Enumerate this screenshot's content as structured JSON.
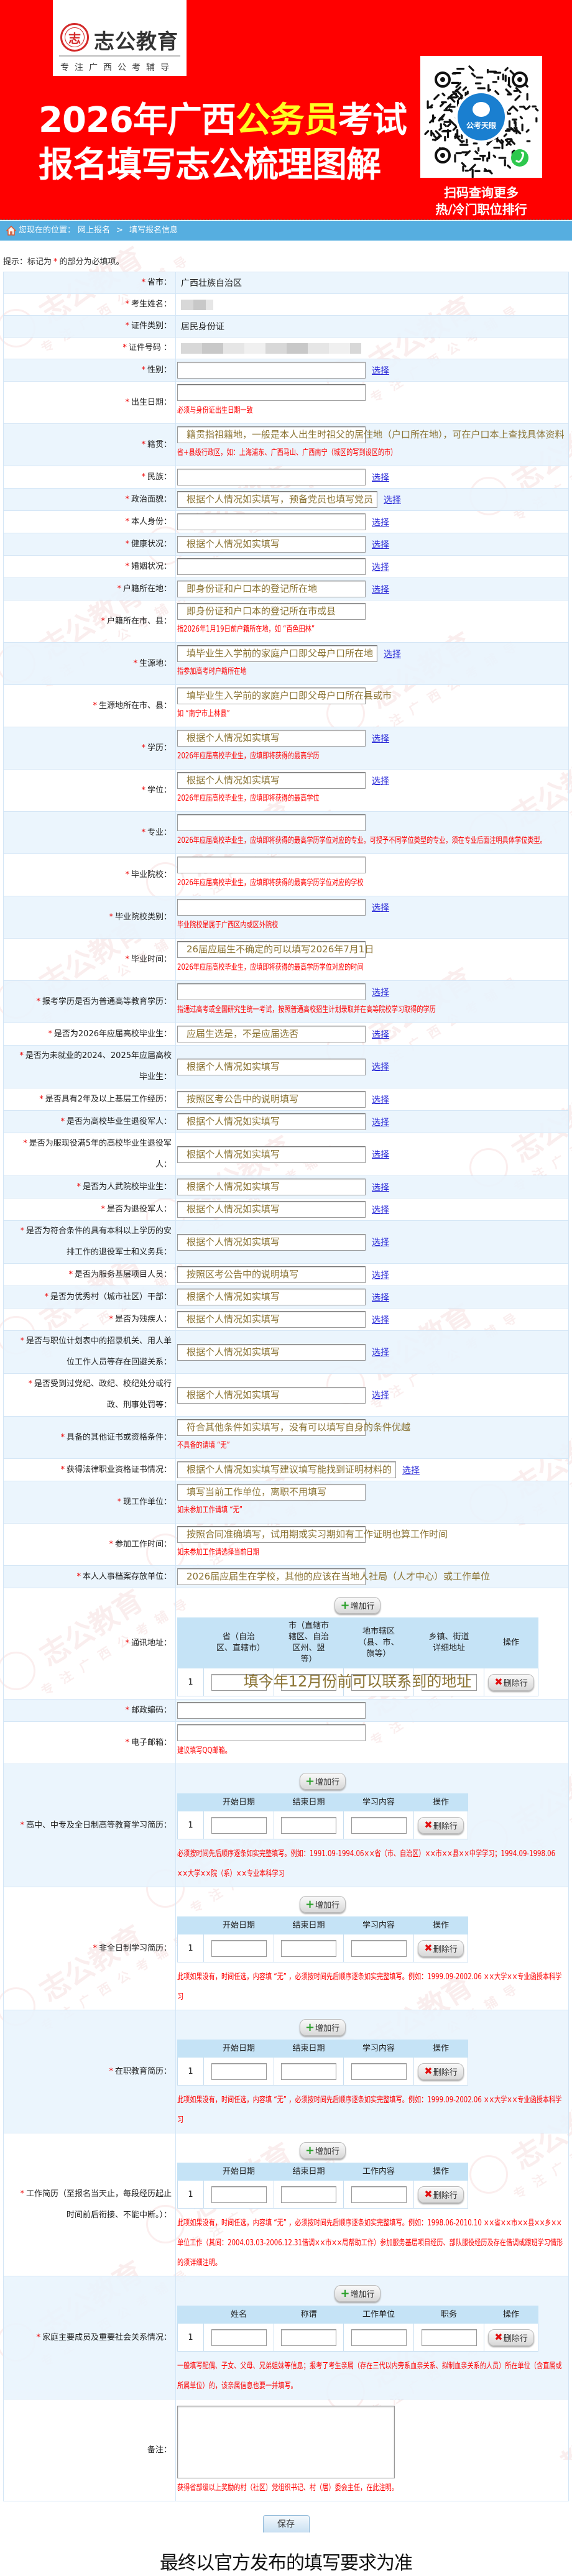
{
  "header": {
    "logo_name": "志公教育",
    "logo_seal": "志",
    "logo_slogan": "专注广西公考辅导",
    "title_line1_a": "2026年广西",
    "title_line1_b": "公务员",
    "title_line1_c": "考试",
    "title_line2": "报名填写志公梳理图解",
    "qr_center_label": "公考天眼",
    "qr_caption1": "扫码查询更多",
    "qr_caption2": "热/冷门职位排行",
    "colors": {
      "background": "#ff0000",
      "highlight": "#ffff22",
      "qr_badge": "#1a7fd0"
    }
  },
  "watermark": {
    "brand": "志公教育",
    "slogan": "专注广西公考辅导"
  },
  "breadcrumb": {
    "icon": "home-icon",
    "prefix": "您现在的位置：",
    "items": [
      "网上报名",
      "填写报名信息"
    ],
    "separator": ">"
  },
  "tip": {
    "prefix": "提示：标记为",
    "star": "*",
    "suffix": "的部分为必填项。"
  },
  "labels": {
    "select": "选择",
    "add_row": "增加行",
    "delete_row": "删除行",
    "required": "*"
  },
  "form": {
    "rows": [
      {
        "label": "省市：",
        "required": true,
        "kind": "text",
        "value": "广西壮族自治区"
      },
      {
        "label": "考生姓名：",
        "required": true,
        "kind": "blur"
      },
      {
        "label": "证件类别：",
        "required": true,
        "kind": "text",
        "value": "居民身份证"
      },
      {
        "label": "证件号码 ：",
        "required": true,
        "kind": "blur"
      },
      {
        "label": "性别：",
        "required": true,
        "kind": "input",
        "placeholder": "",
        "select": true
      },
      {
        "label": "出生日期：",
        "required": true,
        "kind": "input",
        "placeholder": "",
        "hint": "必须与身份证出生日期一致"
      },
      {
        "label": "籍贯：",
        "required": true,
        "kind": "input",
        "placeholder": "籍贯指祖籍地，一般是本人出生时祖父的居住地（户口所在地），可在户口本上查找具体资料",
        "hint": "省+县级行政区，如：上海浦东、广西马山、广西南宁（城区的写到设区的市）"
      },
      {
        "label": "民族：",
        "required": true,
        "kind": "input",
        "placeholder": "",
        "select": true
      },
      {
        "label": "政治面貌：",
        "required": true,
        "kind": "input",
        "placeholder": "根据个人情况如实填写，预备党员也填写党员",
        "select": true
      },
      {
        "label": "本人身份：",
        "required": true,
        "kind": "input",
        "placeholder": "",
        "select": true
      },
      {
        "label": "健康状况：",
        "required": true,
        "kind": "input",
        "placeholder": "根据个人情况如实填写",
        "select": true
      },
      {
        "label": "婚姻状况：",
        "required": true,
        "kind": "input",
        "placeholder": "",
        "select": true
      },
      {
        "label": "户籍所在地：",
        "required": true,
        "kind": "input",
        "placeholder": "即身份证和户口本的登记所在地",
        "select": true
      },
      {
        "label": "户籍所在市、县：",
        "required": true,
        "kind": "input",
        "placeholder": "即身份证和户口本的登记所在市或县",
        "hint": "指2026年1月19日前户籍所在地，如 “百色田林”"
      },
      {
        "label": "生源地：",
        "required": true,
        "kind": "input",
        "placeholder": "填毕业生入学前的家庭户口即父母户口所在地",
        "select": true,
        "hint": "指参加高考时户籍所在地"
      },
      {
        "label": "生源地所在市、县：",
        "required": true,
        "kind": "input",
        "placeholder": "填毕业生入学前的家庭户口即父母户口所在县或市",
        "hint": "如 “南宁市上林县”"
      },
      {
        "label": "学历：",
        "required": true,
        "kind": "input",
        "placeholder": "根据个人情况如实填写",
        "select": true,
        "hint": "2026年应届高校毕业生，应填即将获得的最高学历"
      },
      {
        "label": "学位：",
        "required": true,
        "kind": "input",
        "placeholder": "根据个人情况如实填写",
        "select": true,
        "hint": "2026年应届高校毕业生，应填即将获得的最高学位"
      },
      {
        "label": "专业：",
        "required": true,
        "kind": "input",
        "placeholder": "",
        "hint": "2026年应届高校毕业生，应填即将获得的最高学历学位对应的专业。可授予不同学位类型的专业，须在专业后面注明具体学位类型。"
      },
      {
        "label": "毕业院校：",
        "required": true,
        "kind": "input",
        "placeholder": "",
        "hint": "2026年应届高校毕业生，应填即将获得的最高学历学位对应的学校"
      },
      {
        "label": "毕业院校类别：",
        "required": true,
        "kind": "input",
        "placeholder": "",
        "select": true,
        "hint": "毕业院校是属于广西区内或区外院校"
      },
      {
        "label": "毕业时间：",
        "required": true,
        "kind": "input",
        "placeholder": "26届应届生不确定的可以填写2026年7月1日",
        "hint": "2026年应届高校毕业生，应填即将获得的最高学历学位对应的时间"
      },
      {
        "label": "报考学历是否为普通高等教育学历：",
        "required": true,
        "kind": "input",
        "placeholder": "",
        "select": true,
        "hint": "指通过高考或全国研究生统一考试，按照普通高校招生计划录取并在高等院校学习取得的学历"
      },
      {
        "label": "是否为2026年应届高校毕业生：",
        "required": true,
        "kind": "input",
        "placeholder": "应届生选是，不是应届选否",
        "select": true
      },
      {
        "label": "是否为未就业的2024、2025年应届高校毕业生：",
        "required": true,
        "kind": "input",
        "placeholder": "根据个人情况如实填写",
        "select": true
      },
      {
        "label": "是否具有2年及以上基层工作经历：",
        "required": true,
        "kind": "input",
        "placeholder": "按照区考公告中的说明填写",
        "select": true
      },
      {
        "label": "是否为高校毕业生退役军人：",
        "required": true,
        "kind": "input",
        "placeholder": "根据个人情况如实填写",
        "select": true
      },
      {
        "label": "是否为服现役满5年的高校毕业生退役军人：",
        "required": true,
        "kind": "input",
        "placeholder": "根据个人情况如实填写",
        "select": true
      },
      {
        "label": "是否为人武院校毕业生：",
        "required": true,
        "kind": "input",
        "placeholder": "根据个人情况如实填写",
        "select": true
      },
      {
        "label": "是否为退役军人：",
        "required": true,
        "kind": "input",
        "placeholder": "根据个人情况如实填写",
        "select": true
      },
      {
        "label": "是否为符合条件的具有本科以上学历的安排工作的退役军士和义务兵：",
        "required": true,
        "kind": "input",
        "placeholder": "根据个人情况如实填写",
        "select": true
      },
      {
        "label": "是否为服务基层项目人员：",
        "required": true,
        "kind": "input",
        "placeholder": "按照区考公告中的说明填写",
        "select": true
      },
      {
        "label": "是否为优秀村（城市社区）干部：",
        "required": true,
        "kind": "input",
        "placeholder": "根据个人情况如实填写",
        "select": true
      },
      {
        "label": "是否为残疾人：",
        "required": true,
        "kind": "input",
        "placeholder": "根据个人情况如实填写",
        "select": true
      },
      {
        "label": "是否与职位计划表中的招录机关、用人单位工作人员等存在回避关系：",
        "required": true,
        "kind": "input",
        "placeholder": "根据个人情况如实填写",
        "select": true
      },
      {
        "label": "是否受到过党纪、政纪、校纪处分或行政、刑事处罚等：",
        "required": true,
        "kind": "input",
        "placeholder": "根据个人情况如实填写",
        "select": true
      },
      {
        "label": "具备的其他证书或资格条件：",
        "required": true,
        "kind": "input",
        "placeholder": "符合其他条件如实填写，没有可以填写自身的条件优越",
        "hint": "不具备的请填 “无”"
      },
      {
        "label": "获得法律职业资格证书情况：",
        "required": true,
        "kind": "input",
        "placeholder": "根据个人情况如实填写建议填写能找到证明材料的",
        "select": true,
        "tight": true
      },
      {
        "label": "现工作单位：",
        "required": true,
        "kind": "input",
        "placeholder": "填写当前工作单位，离职不用填写",
        "hint": "如未参加工作请填 “无”"
      },
      {
        "label": "参加工作时间：",
        "required": true,
        "kind": "input",
        "placeholder": "按照合同准确填写，试用期或实习期如有工作证明也算工作时间",
        "hint": "如未参加工作请选择当前日期"
      },
      {
        "label": "本人人事档案存放单位：",
        "required": true,
        "kind": "input",
        "placeholder": "2026届应届生在学校，其他的应该在当地人社局（人才中心）或工作单位"
      },
      {
        "label": "通讯地址：",
        "required": true,
        "kind": "table",
        "columns": [
          "省（自治区、直辖市）",
          "市（直辖市辖区、自治区州、盟等）",
          "地市辖区（县、市、旗等）",
          "乡镇、街道详细地址",
          "操作"
        ],
        "index": "1",
        "overlay": "填今年12月份前可以联系到的地址"
      },
      {
        "label": "邮政编码：",
        "required": true,
        "kind": "input",
        "placeholder": ""
      },
      {
        "label": "电子邮箱：",
        "required": true,
        "kind": "input",
        "placeholder": "",
        "hint": "建议填写QQ邮箱。"
      },
      {
        "label": "高中、中专及全日制高等教育学习简历：",
        "required": true,
        "kind": "table",
        "columns": [
          "开始日期",
          "结束日期",
          "学习内容",
          "操作"
        ],
        "index": "1",
        "hint": "必须按时间先后顺序逐条如实完整填写。例如：1991.09-1994.06××省（市、自治区）××市××县××中学学习；1994.09-1998.06 ××大学××院（系）××专业本科学习"
      },
      {
        "label": "非全日制学习简历：",
        "required": true,
        "kind": "table",
        "columns": [
          "开始日期",
          "结束日期",
          "学习内容",
          "操作"
        ],
        "index": "1",
        "hint": "此项如果没有，时间任选，内容填 “无” ，必须按时间先后顺序逐条如实完整填写。例如：1999.09-2002.06 ××大学××专业函授本科学习"
      },
      {
        "label": "在职教育简历：",
        "required": true,
        "kind": "table",
        "columns": [
          "开始日期",
          "结束日期",
          "学习内容",
          "操作"
        ],
        "index": "1",
        "hint": "此项如果没有，时间任选，内容填 “无” ，必须按时间先后顺序逐条如实完整填写。例如：1999.09-2002.06 ××大学××专业函授本科学习"
      },
      {
        "label": "工作简历（至报名当天止，每段经历起止时间前后衔接、不能中断。）：",
        "required": true,
        "kind": "table",
        "columns": [
          "开始日期",
          "结束日期",
          "工作内容",
          "操作"
        ],
        "index": "1",
        "hint": "此项如果没有，时间任选，内容填 “无” ，必须按时间先后顺序逐条如实完整填写。例如：1998.06-2010.10 ××省××市××县××乡××单位工作（其间：2004.03.03-2006.12.31借调××市××局帮助工作）参加服务基层项目经历、部队服役经历及存在借调或跟班学习情形的须详细注明。"
      },
      {
        "label": "家庭主要成员及重要社会关系情况：",
        "required": true,
        "kind": "table",
        "columns": [
          "姓名",
          "称谓",
          "工作单位",
          "职务",
          "操作"
        ],
        "index": "1",
        "hint": "一般填写配偶、子女、父母、兄弟姐妹等信息；报考了考生亲属（存在三代以内旁系血亲关系、拟制血亲关系的人员）所在单位（含直属或所属单位）的，该亲属信息也要一并填写。"
      },
      {
        "label": "备注：",
        "required": false,
        "kind": "textarea",
        "hint": "获得省部级以上奖励的村（社区）党组织书记、村（居）委会主任，在此注明。"
      }
    ]
  },
  "actions": {
    "save": "保存"
  },
  "footer": {
    "note": "最终以官方发布的填写要求为准"
  },
  "colors": {
    "breadcrumb": "#56aee0",
    "hint": "#ff0000",
    "placeholder": "#8b7434",
    "link": "#2b2bd8",
    "row_alt": "#e8f3fd",
    "subtable_header": "#c5e3f6"
  }
}
